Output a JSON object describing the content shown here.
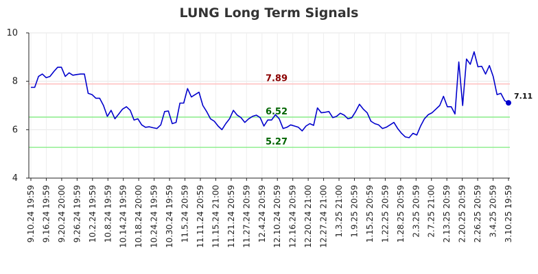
{
  "chart_data": {
    "type": "line",
    "title": "LUNG Long Term Signals",
    "xlabel": "",
    "ylabel": "",
    "ylim": [
      4,
      10
    ],
    "yticks": [
      "4",
      "6",
      "8",
      "10"
    ],
    "grid": true,
    "x_tick_labels": [
      "9.10.24 19:59",
      "9.16.24 19:59",
      "9.20.24 20:00",
      "9.26.24 19:59",
      "10.2.24 19:59",
      "10.8.24 19:59",
      "10.14.24 19:59",
      "10.18.24 20:00",
      "10.24.24 19:59",
      "10.30.24 19:59",
      "11.5.24 20:59",
      "11.11.24 20:59",
      "11.15.24 21:00",
      "11.21.24 20:59",
      "11.27.24 20:59",
      "12.4.24 20:59",
      "12.10.24 20:59",
      "12.16.24 20:59",
      "12.20.24 21:00",
      "12.27.24 21:00",
      "1.3.25 21:00",
      "1.9.25 20:59",
      "1.15.25 20:59",
      "1.22.25 20:59",
      "1.28.25 20:59",
      "2.3.25 20:59",
      "2.7.25 21:00",
      "2.13.25 20:59",
      "2.20.25 20:59",
      "2.26.25 20:59",
      "3.4.25 20:59",
      "3.10.25 19:59"
    ],
    "series": [
      {
        "color": "#0000cc",
        "values": [
          7.75,
          7.75,
          8.2,
          8.3,
          8.15,
          8.2,
          8.4,
          8.58,
          8.58,
          8.2,
          8.35,
          8.25,
          8.28,
          8.3,
          8.3,
          7.5,
          7.45,
          7.3,
          7.3,
          7.0,
          6.55,
          6.8,
          6.45,
          6.65,
          6.85,
          6.95,
          6.8,
          6.4,
          6.45,
          6.2,
          6.1,
          6.12,
          6.08,
          6.05,
          6.2,
          6.75,
          6.77,
          6.25,
          6.3,
          7.1,
          7.1,
          7.7,
          7.35,
          7.45,
          7.55,
          7.0,
          6.75,
          6.45,
          6.35,
          6.15,
          6.0,
          6.25,
          6.45,
          6.8,
          6.6,
          6.5,
          6.3,
          6.45,
          6.55,
          6.6,
          6.5,
          6.15,
          6.4,
          6.4,
          6.62,
          6.45,
          6.05,
          6.1,
          6.2,
          6.15,
          6.1,
          5.95,
          6.15,
          6.25,
          6.18,
          6.9,
          6.7,
          6.72,
          6.75,
          6.5,
          6.55,
          6.68,
          6.6,
          6.45,
          6.5,
          6.75,
          7.05,
          6.85,
          6.7,
          6.35,
          6.25,
          6.2,
          6.05,
          6.1,
          6.2,
          6.3,
          6.05,
          5.85,
          5.7,
          5.67,
          5.85,
          5.78,
          6.15,
          6.45,
          6.62,
          6.7,
          6.85,
          7.0,
          7.38,
          6.95,
          6.95,
          6.65,
          8.8,
          7.0,
          8.92,
          8.7,
          9.22,
          8.6,
          8.62,
          8.3,
          8.65,
          8.2,
          7.45,
          7.5,
          7.2,
          7.11
        ]
      }
    ],
    "levels": [
      {
        "value": 7.89,
        "label": "7.89",
        "line_color": "#ffc0c0",
        "label_color": "#8b0000"
      },
      {
        "value": 6.52,
        "label": "6.52",
        "line_color": "#90ee90",
        "label_color": "#006400"
      },
      {
        "value": 5.27,
        "label": "5.27",
        "line_color": "#90ee90",
        "label_color": "#006400"
      }
    ],
    "last_value_label": "7.11",
    "legend": "none"
  }
}
